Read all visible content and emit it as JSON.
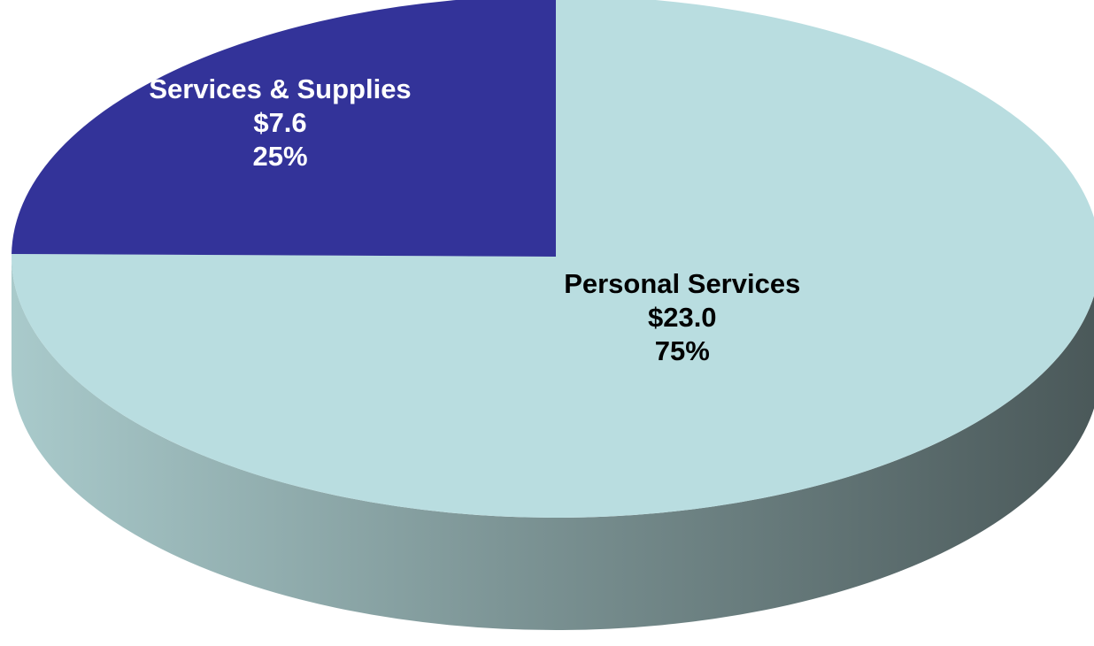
{
  "chart_data": {
    "type": "pie",
    "style": "3d",
    "title": "",
    "unit_prefix": "$",
    "slices": [
      {
        "name": "Personal Services",
        "value": 23.0,
        "value_label": "$23.0",
        "percent": 75,
        "percent_label": "75%",
        "color": "#b9dde0",
        "label_color": "#000000"
      },
      {
        "name": "Services & Supplies",
        "value": 7.6,
        "value_label": "$7.6",
        "percent": 25,
        "percent_label": "25%",
        "color": "#333399",
        "label_color": "#ffffff"
      }
    ],
    "side_colors": [
      "#a9cacb",
      "#4a5859"
    ]
  }
}
